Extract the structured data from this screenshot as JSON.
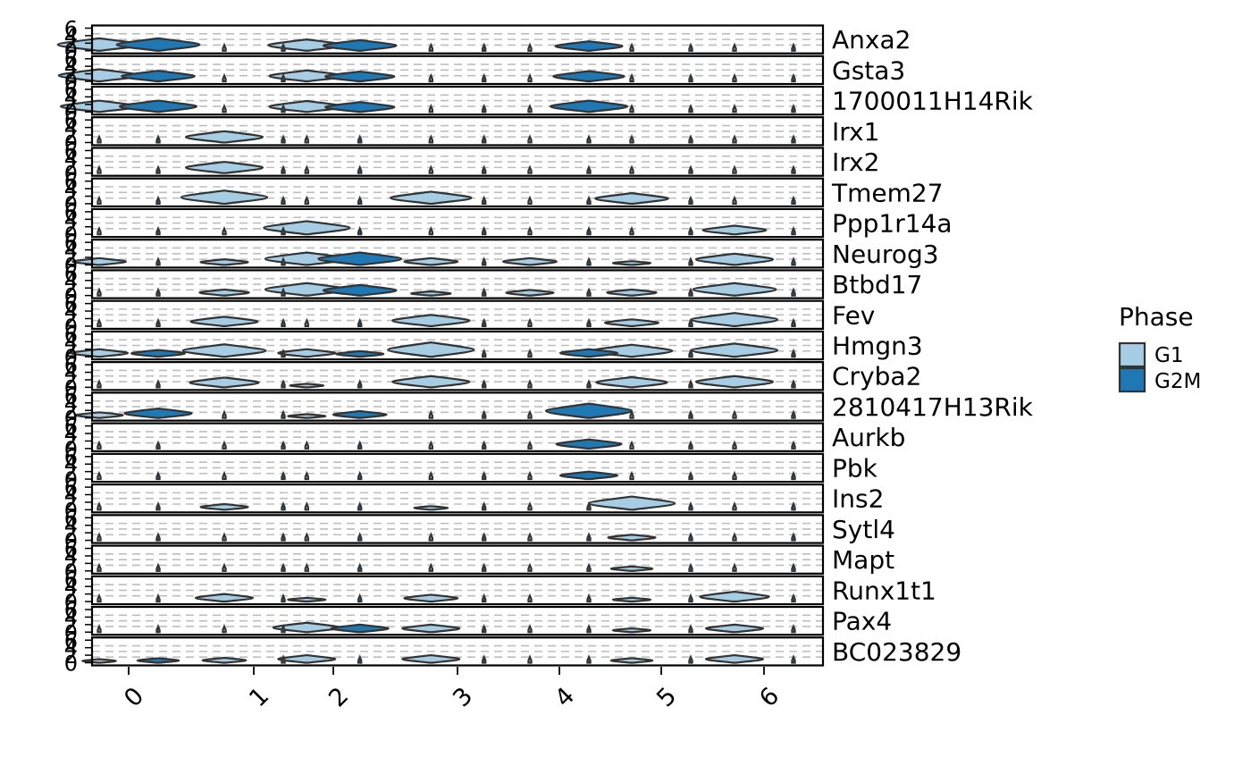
{
  "chart_data": {
    "type": "violin",
    "layout": "stacked violin, one row per gene, split by phase",
    "x_categories": [
      "0",
      "1",
      "2",
      "3",
      "4",
      "5",
      "6"
    ],
    "y_ticks": [
      0,
      2,
      4,
      6
    ],
    "ylim": [
      0,
      6
    ],
    "grid": "dashed horizontal",
    "legend": {
      "title": "Phase",
      "position": "right",
      "entries": [
        {
          "name": "G1",
          "color": "#a6cde3"
        },
        {
          "name": "G2M",
          "color": "#1f77b4"
        }
      ]
    },
    "genes": [
      "Anxa2",
      "Gsta3",
      "1700011H14Rik",
      "Irx1",
      "Irx2",
      "Tmem27",
      "Ppp1r14a",
      "Neurog3",
      "Btbd17",
      "Fev",
      "Hmgn3",
      "Cryba2",
      "2810417H13Rik",
      "Aurkb",
      "Pbk",
      "Ins2",
      "Sytl4",
      "Mapt",
      "Runx1t1",
      "Pax4",
      "BC023829"
    ],
    "approx_expression_level": {
      "note": "typical level per cluster 0-6, split G1 | G2M, read from violin positions",
      "Anxa2": {
        "G1": [
          3.3,
          0.2,
          3.0,
          0.1,
          0.3,
          0.1,
          0.2
        ],
        "G2M": [
          3.3,
          0.1,
          2.8,
          0.1,
          2.5,
          0.1,
          0.1
        ]
      },
      "Gsta3": {
        "G1": [
          3.2,
          0.1,
          2.9,
          0.1,
          0.2,
          0.1,
          0.1
        ],
        "G2M": [
          2.8,
          0.1,
          2.6,
          0.1,
          2.7,
          0.1,
          0.1
        ]
      },
      "1700011H14Rik": {
        "G1": [
          3.0,
          0.1,
          2.9,
          0.1,
          0.2,
          0.3,
          0.1
        ],
        "G2M": [
          3.0,
          0.1,
          2.6,
          0.1,
          3.0,
          0.1,
          0.1
        ]
      },
      "Irx1": {
        "G1": [
          0.1,
          3.0,
          0.1,
          0.3,
          0.1,
          0.2,
          0.1
        ],
        "G2M": [
          0.1,
          0.1,
          0.1,
          0.1,
          0.1,
          0.1,
          0.1
        ]
      },
      "Irx2": {
        "G1": [
          0.1,
          3.0,
          0.1,
          0.5,
          0.1,
          0.3,
          0.2
        ],
        "G2M": [
          0.1,
          0.1,
          0.1,
          0.1,
          0.1,
          0.1,
          0.1
        ]
      },
      "Tmem27": {
        "G1": [
          0.1,
          3.5,
          0.1,
          3.2,
          0.1,
          2.8,
          0.3
        ],
        "G2M": [
          0.1,
          0.1,
          0.1,
          0.1,
          0.1,
          0.1,
          0.1
        ]
      },
      "Ppp1r14a": {
        "G1": [
          0.1,
          0.1,
          3.5,
          0.1,
          0.3,
          0.1,
          2.3
        ],
        "G2M": [
          0.1,
          0.1,
          0.1,
          0.1,
          0.1,
          0.1,
          0.1
        ]
      },
      "Neurog3": {
        "G1": [
          1.8,
          1.5,
          3.3,
          1.8,
          1.8,
          1.0,
          3.0
        ],
        "G2M": [
          0.6,
          0.1,
          3.3,
          0.1,
          0.1,
          0.1,
          0.1
        ]
      },
      "Btbd17": {
        "G1": [
          0.2,
          1.6,
          3.3,
          1.1,
          1.5,
          1.6,
          3.3
        ],
        "G2M": [
          0.1,
          0.1,
          2.8,
          0.1,
          0.1,
          0.1,
          0.1
        ]
      },
      "Fev": {
        "G1": [
          0.1,
          2.5,
          0.1,
          3.0,
          0.1,
          1.8,
          3.5
        ],
        "G2M": [
          0.1,
          0.1,
          0.1,
          0.1,
          0.1,
          0.1,
          0.1
        ]
      },
      "Hmgn3": {
        "G1": [
          2.0,
          3.3,
          2.0,
          3.8,
          0.1,
          3.2,
          3.5
        ],
        "G2M": [
          1.8,
          0.1,
          1.5,
          0.1,
          2.0,
          0.1,
          0.1
        ]
      },
      "Cryba2": {
        "G1": [
          0.1,
          2.6,
          0.8,
          3.0,
          0.1,
          2.7,
          3.0
        ],
        "G2M": [
          0.5,
          0.1,
          0.1,
          0.1,
          0.1,
          0.1,
          0.1
        ]
      },
      "2810417H13Rik": {
        "G1": [
          1.5,
          0.2,
          1.0,
          0.3,
          0.1,
          0.2,
          0.2
        ],
        "G2M": [
          2.5,
          0.1,
          1.8,
          0.1,
          3.8,
          0.1,
          0.1
        ]
      },
      "Aurkb": {
        "G1": [
          0.1,
          0.1,
          0.1,
          0.1,
          0.1,
          0.1,
          0.1
        ],
        "G2M": [
          0.3,
          0.1,
          0.1,
          0.1,
          2.4,
          0.1,
          0.1
        ]
      },
      "Pbk": {
        "G1": [
          0.1,
          0.1,
          0.1,
          0.1,
          0.1,
          0.1,
          0.1
        ],
        "G2M": [
          0.4,
          0.1,
          0.1,
          0.1,
          2.0,
          0.1,
          0.1
        ]
      },
      "Ins2": {
        "G1": [
          0.2,
          1.5,
          0.1,
          0.8,
          0.1,
          3.5,
          0.1
        ],
        "G2M": [
          0.1,
          0.1,
          0.1,
          0.1,
          0.1,
          0.1,
          0.1
        ]
      },
      "Sytl4": {
        "G1": [
          0.1,
          0.1,
          0.1,
          0.5,
          0.1,
          1.5,
          0.1
        ],
        "G2M": [
          0.1,
          0.1,
          0.1,
          0.1,
          0.1,
          0.1,
          0.1
        ]
      },
      "Mapt": {
        "G1": [
          0.1,
          0.3,
          0.1,
          0.3,
          0.1,
          1.2,
          0.3
        ],
        "G2M": [
          0.1,
          0.1,
          0.1,
          0.1,
          0.1,
          0.1,
          0.1
        ]
      },
      "Runx1t1": {
        "G1": [
          0.1,
          2.0,
          1.0,
          1.8,
          0.1,
          1.0,
          2.6
        ],
        "G2M": [
          0.2,
          0.1,
          0.1,
          0.1,
          0.1,
          0.1,
          0.1
        ]
      },
      "Pax4": {
        "G1": [
          0.1,
          0.2,
          2.5,
          2.0,
          0.5,
          1.0,
          2.0
        ],
        "G2M": [
          0.1,
          0.1,
          2.0,
          0.1,
          0.1,
          0.1,
          0.1
        ]
      },
      "BC023829": {
        "G1": [
          0.8,
          1.3,
          2.0,
          2.0,
          0.5,
          1.2,
          2.0
        ],
        "G2M": [
          1.2,
          0.1,
          0.1,
          0.1,
          0.1,
          0.1,
          0.1
        ]
      }
    }
  }
}
